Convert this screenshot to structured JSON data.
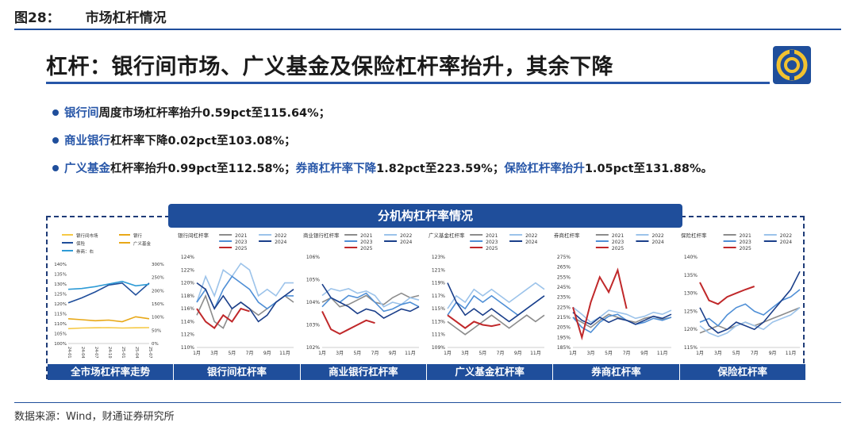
{
  "figure": {
    "number": "图28：",
    "title": "市场杠杆情况"
  },
  "headline": "杠杆：银行间市场、广义基金及保险杠杆率抬升，其余下降",
  "bullets": [
    {
      "parts": [
        {
          "text": "银行间",
          "hl": true
        },
        {
          "text": "周度市场杠杆率抬升0.59pct至115.64%；",
          "hl": false
        }
      ]
    },
    {
      "parts": [
        {
          "text": "商业银行",
          "hl": true
        },
        {
          "text": "杠杆率下降0.02pct至103.08%；",
          "hl": false
        }
      ]
    },
    {
      "parts": [
        {
          "text": "广义基金",
          "hl": true
        },
        {
          "text": "杠杆率抬升0.99pct至112.58%；",
          "hl": false
        },
        {
          "text": "券商杠杆率下降",
          "hl": true
        },
        {
          "text": "1.82pct至223.59%；",
          "hl": false
        },
        {
          "text": "保险杠杆率抬升",
          "hl": true
        },
        {
          "text": "1.05pct至131.88%。",
          "hl": false
        }
      ]
    }
  ],
  "panel_title": "分机构杠杆率情况",
  "tabs": [
    "全市场杠杆率走势",
    "银行间杠杆率",
    "商业银行杠杆率",
    "广义基金杠杆率",
    "券商杠杆率",
    "保险杠杆率"
  ],
  "source": "数据来源：Wind，财通证券研究所",
  "colors": {
    "accent": "#1f4e9b",
    "y2021": "#8c8c8c",
    "y2022": "#9cc3ea",
    "y2023": "#4f8fd6",
    "y2024": "#1b3f8a",
    "y2025": "#c0282a"
  },
  "chart_data": [
    {
      "type": "line",
      "title": "",
      "legend": [
        "银行间市场",
        "银行",
        "保险",
        "广义基金",
        "券商：右"
      ],
      "legend_colors": [
        "#f6c945",
        "#e8a817",
        "#1f4e9b",
        "#e8a817",
        "#2e9bd6"
      ],
      "x_ticks": [
        "24-01",
        "24-04",
        "24-07",
        "24-10",
        "25-01",
        "25-04",
        "25-07"
      ],
      "y_left_ticks": [
        "100%",
        "105%",
        "110%",
        "115%",
        "120%",
        "125%",
        "130%",
        "135%",
        "140%"
      ],
      "y_right_ticks": [
        "0%",
        "50%",
        "100%",
        "150%",
        "200%",
        "250%",
        "300%"
      ],
      "ylim_left": [
        100,
        140
      ],
      "ylim_right": [
        0,
        300
      ],
      "series": [
        {
          "name": "银行间市场",
          "axis": "left",
          "color": "#f6c945",
          "values": [
            107.5,
            107.8,
            107.9,
            108.0,
            107.8,
            107.9,
            108.0
          ]
        },
        {
          "name": "保险",
          "axis": "left",
          "color": "#1f4e9b",
          "values": [
            120.5,
            123.0,
            126.0,
            129.5,
            130.5,
            124.5,
            130.5
          ]
        },
        {
          "name": "广义基金",
          "axis": "left",
          "color": "#e8a817",
          "values": [
            112.5,
            112.0,
            111.5,
            111.8,
            111.0,
            113.5,
            112.5
          ]
        },
        {
          "name": "券商：右",
          "axis": "right",
          "color": "#2e9bd6",
          "values": [
            205,
            208,
            215,
            225,
            235,
            218,
            224
          ]
        }
      ]
    },
    {
      "type": "line",
      "title": "银行间杠杆率",
      "legend": [
        "2021",
        "2022",
        "2023",
        "2024",
        "2025"
      ],
      "x_ticks": [
        "1月",
        "3月",
        "5月",
        "7月",
        "9月",
        "11月"
      ],
      "y_ticks": [
        "110%",
        "112%",
        "114%",
        "116%",
        "118%",
        "120%",
        "122%",
        "124%"
      ],
      "ylim": [
        110,
        124
      ],
      "series": [
        {
          "name": "2021",
          "values": [
            115,
            118,
            114,
            113,
            116,
            117,
            116,
            115,
            116,
            117,
            118,
            117
          ]
        },
        {
          "name": "2022",
          "values": [
            117,
            121,
            118,
            122,
            121,
            123,
            122,
            118,
            119,
            118,
            120,
            120
          ]
        },
        {
          "name": "2023",
          "values": [
            117,
            119,
            116,
            119,
            121,
            120,
            119,
            117,
            116,
            117,
            118,
            118
          ]
        },
        {
          "name": "2024",
          "values": [
            120,
            119,
            116,
            118,
            116,
            117,
            116,
            114,
            115,
            117,
            118,
            119
          ]
        },
        {
          "name": "2025",
          "values": [
            116,
            114,
            113,
            115,
            114,
            116,
            115.6
          ]
        }
      ]
    },
    {
      "type": "line",
      "title": "商业银行杠杆率",
      "legend": [
        "2021",
        "2022",
        "2023",
        "2024",
        "2025"
      ],
      "x_ticks": [
        "1月",
        "3月",
        "5月",
        "7月",
        "9月",
        "11月"
      ],
      "y_ticks": [
        "102%",
        "103%",
        "104%",
        "105%",
        "106%"
      ],
      "ylim": [
        102,
        106
      ],
      "series": [
        {
          "name": "2021",
          "values": [
            104.0,
            104.2,
            103.8,
            103.9,
            104.1,
            104.3,
            104.0,
            103.9,
            104.2,
            104.4,
            104.2,
            104.3
          ]
        },
        {
          "name": "2022",
          "values": [
            104.3,
            104.6,
            104.5,
            104.6,
            104.4,
            104.5,
            104.3,
            103.8,
            104.0,
            103.9,
            104.2,
            104.1
          ]
        },
        {
          "name": "2023",
          "values": [
            103.8,
            104.2,
            104.0,
            104.3,
            104.2,
            104.4,
            104.0,
            103.6,
            103.7,
            103.9,
            104.0,
            103.8
          ]
        },
        {
          "name": "2024",
          "values": [
            104.8,
            104.2,
            104.0,
            103.8,
            103.5,
            103.7,
            103.6,
            103.3,
            103.5,
            103.7,
            103.6,
            103.8
          ]
        },
        {
          "name": "2025",
          "values": [
            103.6,
            102.8,
            102.6,
            102.8,
            103.0,
            103.2,
            103.08
          ]
        }
      ]
    },
    {
      "type": "line",
      "title": "广义基金杠杆率",
      "legend": [
        "2021",
        "2022",
        "2023",
        "2024",
        "2025"
      ],
      "x_ticks": [
        "1月",
        "3月",
        "5月",
        "7月",
        "9月",
        "11月"
      ],
      "y_ticks": [
        "109%",
        "111%",
        "113%",
        "115%",
        "117%",
        "119%",
        "121%",
        "123%"
      ],
      "ylim": [
        109,
        123
      ],
      "series": [
        {
          "name": "2021",
          "values": [
            113,
            112,
            111,
            112,
            113,
            114,
            113,
            112,
            113,
            114,
            113,
            114
          ]
        },
        {
          "name": "2022",
          "values": [
            115,
            117,
            116,
            118,
            117,
            118,
            117,
            116,
            117,
            118,
            119,
            118
          ]
        },
        {
          "name": "2023",
          "values": [
            114,
            116,
            115,
            117,
            116,
            117,
            116,
            115,
            114,
            115,
            116,
            117
          ]
        },
        {
          "name": "2024",
          "values": [
            119,
            116,
            114,
            115,
            114,
            115,
            114,
            113,
            114,
            115,
            116,
            117
          ]
        },
        {
          "name": "2025",
          "values": [
            114,
            113,
            112,
            113,
            112.5,
            112.3,
            112.58
          ]
        }
      ]
    },
    {
      "type": "line",
      "title": "券商杠杆率",
      "legend": [
        "2021",
        "2022",
        "2023",
        "2024",
        "2025"
      ],
      "x_ticks": [
        "1月",
        "3月",
        "5月",
        "7月",
        "9月",
        "11月"
      ],
      "y_ticks": [
        "185%",
        "195%",
        "205%",
        "215%",
        "225%",
        "235%",
        "245%",
        "255%",
        "265%",
        "275%"
      ],
      "ylim": [
        185,
        275
      ],
      "series": [
        {
          "name": "2021",
          "values": [
            215,
            210,
            205,
            212,
            218,
            215,
            212,
            210,
            214,
            216,
            213,
            215
          ]
        },
        {
          "name": "2022",
          "values": [
            225,
            218,
            210,
            215,
            222,
            220,
            218,
            214,
            216,
            220,
            218,
            222
          ]
        },
        {
          "name": "2023",
          "values": [
            215,
            205,
            200,
            210,
            216,
            218,
            212,
            208,
            210,
            214,
            212,
            215
          ]
        },
        {
          "name": "2024",
          "values": [
            220,
            212,
            208,
            215,
            210,
            214,
            212,
            208,
            212,
            216,
            214,
            218
          ]
        },
        {
          "name": "2025",
          "values": [
            225,
            195,
            230,
            255,
            240,
            262,
            223.59
          ]
        }
      ]
    },
    {
      "type": "line",
      "title": "保险杠杆率",
      "legend": [
        "2021",
        "2022",
        "2023",
        "2024",
        "2025"
      ],
      "x_ticks": [
        "1月",
        "3月",
        "5月",
        "7月",
        "9月",
        "11月"
      ],
      "y_ticks": [
        "115%",
        "120%",
        "125%",
        "130%",
        "135%",
        "140%"
      ],
      "ylim": [
        115,
        140
      ],
      "series": [
        {
          "name": "2021",
          "values": [
            119,
            120,
            121,
            120,
            121,
            122,
            121,
            122,
            123,
            124,
            125,
            126
          ]
        },
        {
          "name": "2022",
          "values": [
            121,
            119,
            118,
            119,
            121,
            122,
            121,
            120,
            122,
            123,
            124,
            126
          ]
        },
        {
          "name": "2023",
          "values": [
            122,
            123,
            121,
            124,
            126,
            127,
            125,
            124,
            126,
            128,
            129,
            131
          ]
        },
        {
          "name": "2024",
          "values": [
            126,
            121,
            119,
            120,
            122,
            121,
            120,
            122,
            125,
            128,
            131,
            136
          ]
        },
        {
          "name": "2025",
          "values": [
            133,
            128,
            127,
            129,
            130,
            131,
            131.88
          ]
        }
      ]
    }
  ]
}
